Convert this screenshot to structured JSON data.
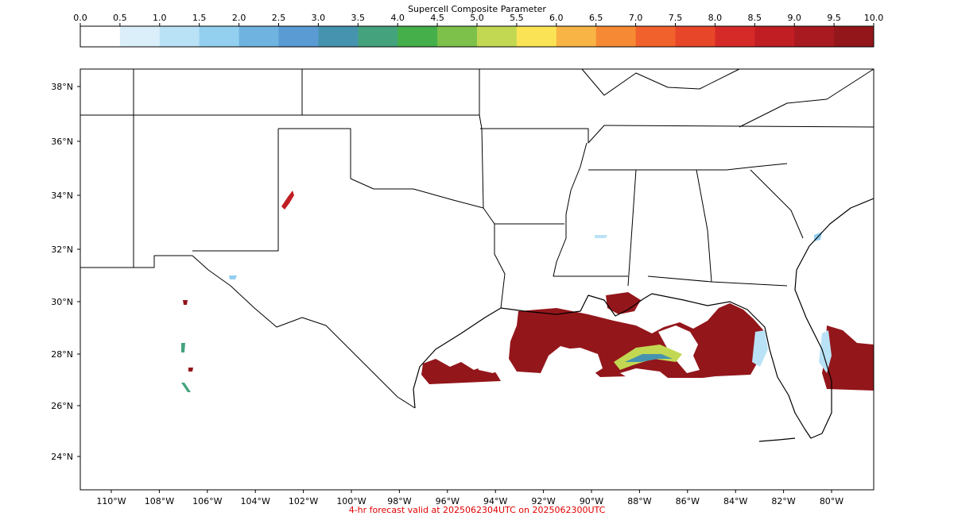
{
  "colorbar": {
    "title": "Supercell Composite Parameter",
    "ticks": [
      "0.0",
      "0.5",
      "1.0",
      "1.5",
      "2.0",
      "2.5",
      "3.0",
      "3.5",
      "4.0",
      "4.5",
      "5.0",
      "5.5",
      "6.0",
      "6.5",
      "7.0",
      "7.5",
      "8.0",
      "8.5",
      "9.0",
      "9.5",
      "10.0"
    ],
    "colors": [
      "#ffffff",
      "#dbeffa",
      "#b9e2f6",
      "#93cfef",
      "#6fb3e0",
      "#5a9bd4",
      "#4693b0",
      "#44a37d",
      "#45b04a",
      "#7dc04a",
      "#c2d852",
      "#fae455",
      "#f8b445",
      "#f68a34",
      "#f1612b",
      "#e84628",
      "#d62a28",
      "#c11e24",
      "#a81a20",
      "#93161b"
    ]
  },
  "map": {
    "lat_labels": [
      "38°N",
      "36°N",
      "34°N",
      "32°N",
      "30°N",
      "28°N",
      "26°N",
      "24°N"
    ],
    "lon_labels": [
      "110°W",
      "108°W",
      "106°W",
      "104°W",
      "102°W",
      "100°W",
      "98°W",
      "96°W",
      "94°W",
      "92°W",
      "90°W",
      "88°W",
      "86°W",
      "84°W",
      "82°W",
      "80°W"
    ]
  },
  "caption": "4-hr forecast valid at 2025062304UTC on 2025062300UTC"
}
